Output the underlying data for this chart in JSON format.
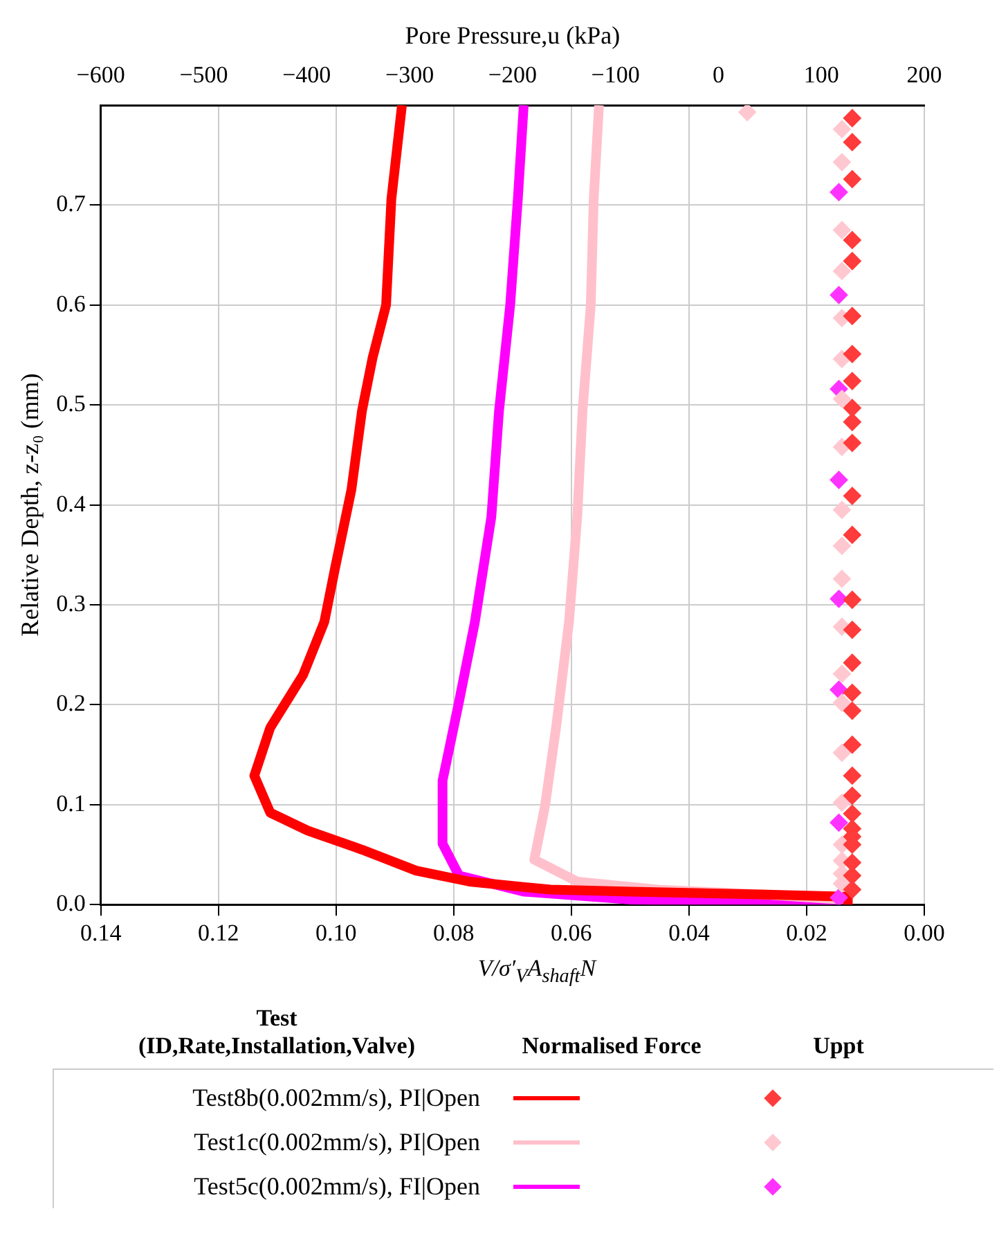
{
  "chart_data": {
    "type": "line",
    "x2label": "Pore Pressure,u (kPa)",
    "ylabel": "Relative Depth, z-z₀ (mm)",
    "xlabel": "V/σ′$_{V}$A$_{shaft}$N",
    "legend_title": "Test\n(ID,Rate,Installation,Valve)",
    "annotations": [
      "Normalised Force",
      "Uppt"
    ],
    "xlim": [
      0.14,
      0.0
    ],
    "xticks": [
      {
        "value": 0.14,
        "label": "0.14"
      },
      {
        "value": 0.12,
        "label": "0.12"
      },
      {
        "value": 0.1,
        "label": "0.10"
      },
      {
        "value": 0.08,
        "label": "0.08"
      },
      {
        "value": 0.06,
        "label": "0.06"
      },
      {
        "value": 0.04,
        "label": "0.04"
      },
      {
        "value": 0.02,
        "label": "0.02"
      },
      {
        "value": 0,
        "label": "0.00"
      }
    ],
    "x2lim": [
      -600,
      200
    ],
    "x2ticks": [
      {
        "value": -600,
        "label": "−600"
      },
      {
        "value": -500,
        "label": "−500"
      },
      {
        "value": -400,
        "label": "−400"
      },
      {
        "value": -300,
        "label": "−300"
      },
      {
        "value": -200,
        "label": "−200"
      },
      {
        "value": -100,
        "label": "−100"
      },
      0,
      100,
      200
    ],
    "ylim": [
      0,
      0.8
    ],
    "yticks": [
      {
        "value": 0,
        "label": "0.0"
      },
      {
        "value": 0.1,
        "label": "0.1"
      },
      {
        "value": 0.2,
        "label": "0.2"
      },
      {
        "value": 0.3,
        "label": "0.3"
      },
      {
        "value": 0.4,
        "label": "0.4"
      },
      {
        "value": 0.5,
        "label": "0.5"
      },
      {
        "value": 0.6,
        "label": "0.6"
      },
      {
        "value": 0.7,
        "label": "0.7"
      }
    ],
    "grid": true,
    "legend": "bottom",
    "series": [
      {
        "name": "Test8b(0.002mm/s), PI|Open",
        "color": "#ff0000",
        "x": [
          0.0888,
          0.0906,
          0.0915,
          0.0938,
          0.0956,
          0.0974,
          0.1002,
          0.102,
          0.1056,
          0.1112,
          0.1139,
          0.1112,
          0.1048,
          0.0956,
          0.0864,
          0.0773,
          0.0636,
          0.0498,
          0.0269,
          0.013,
          0.013
        ],
        "values": [
          0.8,
          0.706,
          0.6,
          0.547,
          0.494,
          0.415,
          0.336,
          0.283,
          0.23,
          0.177,
          0.129,
          0.092,
          0.074,
          0.055,
          0.034,
          0.023,
          0.015,
          0.013,
          0.01,
          0.008,
          0.0
        ]
      },
      {
        "name": "Test1c(0.002mm/s), PI|Open",
        "color": "#ffc0cb",
        "x": [
          0.0553,
          0.0562,
          0.0567,
          0.0581,
          0.059,
          0.0604,
          0.0626,
          0.0645,
          0.0663,
          0.059,
          0.0453,
          0.0269,
          0.014
        ],
        "values": [
          0.8,
          0.706,
          0.6,
          0.494,
          0.388,
          0.283,
          0.177,
          0.098,
          0.045,
          0.023,
          0.015,
          0.01,
          0.005
        ]
      },
      {
        "name": "Test5c(0.002mm/s), FI|Open",
        "color": "#ff00ff",
        "x": [
          0.0681,
          0.0691,
          0.0704,
          0.0723,
          0.0736,
          0.0764,
          0.0791,
          0.0819,
          0.0819,
          0.0791,
          0.0681,
          0.0498,
          0.0269,
          0.014
        ],
        "values": [
          0.8,
          0.706,
          0.6,
          0.494,
          0.388,
          0.283,
          0.203,
          0.124,
          0.061,
          0.029,
          0.013,
          0.005,
          0.001,
          0.005
        ]
      },
      {
        "type": "scatter",
        "axis": "x2",
        "marker": "diamond",
        "color": "#ff3b3b",
        "x": [
          130,
          130,
          130,
          130,
          130,
          130,
          130,
          130,
          130,
          130,
          130,
          130,
          130,
          130,
          130,
          130,
          130,
          130,
          130,
          130,
          130,
          130,
          130,
          130,
          130,
          130,
          130,
          130
        ],
        "values": [
          0.787,
          0.763,
          0.726,
          0.665,
          0.644,
          0.589,
          0.551,
          0.524,
          0.497,
          0.483,
          0.462,
          0.409,
          0.37,
          0.305,
          0.275,
          0.242,
          0.212,
          0.194,
          0.16,
          0.129,
          0.109,
          0.091,
          0.076,
          0.068,
          0.06,
          0.042,
          0.029,
          0.015
        ]
      },
      {
        "type": "scatter",
        "axis": "x2",
        "marker": "diamond",
        "color": "#ffc8d0",
        "x": [
          28,
          120,
          120,
          120,
          120,
          120,
          120,
          120,
          120,
          120,
          120,
          120,
          120,
          120,
          120,
          120,
          120,
          120,
          120,
          120,
          120
        ],
        "values": [
          0.793,
          0.776,
          0.743,
          0.675,
          0.634,
          0.587,
          0.546,
          0.506,
          0.458,
          0.395,
          0.359,
          0.326,
          0.278,
          0.231,
          0.202,
          0.152,
          0.102,
          0.06,
          0.044,
          0.031,
          0.021
        ]
      },
      {
        "type": "scatter",
        "axis": "x2",
        "marker": "diamond",
        "color": "#ff33ff",
        "x": [
          117,
          117,
          117,
          117,
          117,
          117,
          117,
          117
        ],
        "values": [
          0.713,
          0.61,
          0.516,
          0.425,
          0.306,
          0.215,
          0.082,
          0.007
        ]
      }
    ]
  }
}
